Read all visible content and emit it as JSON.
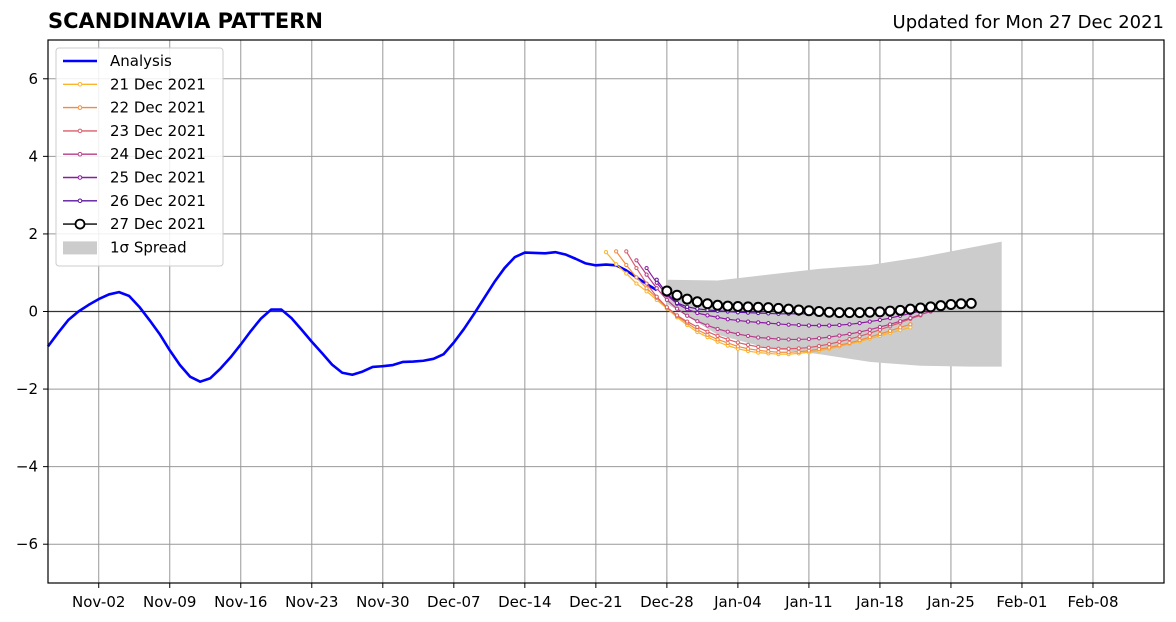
{
  "header": {
    "title": "SCANDINAVIA PATTERN",
    "subtitle": "Updated for Mon 27 Dec 2021"
  },
  "colors": {
    "analysis": "#0000ff",
    "d21": "#fcb52b",
    "d22": "#f28c3c",
    "d23": "#da5d6a",
    "d24": "#b63d8a",
    "d25": "#8a1aa0",
    "d26": "#5a14a0",
    "d27": "#000000",
    "spread": "#cccccc",
    "grid": "#999999"
  },
  "chart_data": {
    "type": "line",
    "title": "SCANDINAVIA PATTERN",
    "xlabel": "",
    "ylabel": "",
    "x_start": "2021-10-28",
    "x_end": "2022-02-15",
    "x_ticks": [
      "Nov-02",
      "Nov-09",
      "Nov-16",
      "Nov-23",
      "Nov-30",
      "Dec-07",
      "Dec-14",
      "Dec-21",
      "Dec-28",
      "Jan-04",
      "Jan-11",
      "Jan-18",
      "Jan-25",
      "Feb-01",
      "Feb-08"
    ],
    "ylim": [
      -7,
      7
    ],
    "y_ticks": [
      "−6",
      "−4",
      "−2",
      "0",
      "2",
      "4",
      "6"
    ],
    "grid": true,
    "legend_position": "top-left",
    "legend": [
      "Analysis",
      "21 Dec 2021",
      "22 Dec 2021",
      "23 Dec 2021",
      "24 Dec 2021",
      "25 Dec 2021",
      "26 Dec 2021",
      "27 Dec 2021",
      "1σ Spread"
    ],
    "analysis": {
      "name": "Analysis",
      "points": [
        [
          "2021-10-28",
          -0.9
        ],
        [
          "2021-10-29",
          -0.55
        ],
        [
          "2021-10-30",
          -0.22
        ],
        [
          "2021-10-31",
          0.0
        ],
        [
          "2021-11-01",
          0.17
        ],
        [
          "2021-11-02",
          0.32
        ],
        [
          "2021-11-03",
          0.44
        ],
        [
          "2021-11-04",
          0.5
        ],
        [
          "2021-11-05",
          0.4
        ],
        [
          "2021-11-06",
          0.12
        ],
        [
          "2021-11-07",
          -0.22
        ],
        [
          "2021-11-08",
          -0.58
        ],
        [
          "2021-11-09",
          -1.0
        ],
        [
          "2021-11-10",
          -1.38
        ],
        [
          "2021-11-11",
          -1.68
        ],
        [
          "2021-11-12",
          -1.81
        ],
        [
          "2021-11-13",
          -1.72
        ],
        [
          "2021-11-14",
          -1.47
        ],
        [
          "2021-11-15",
          -1.18
        ],
        [
          "2021-11-16",
          -0.85
        ],
        [
          "2021-11-17",
          -0.5
        ],
        [
          "2021-11-18",
          -0.18
        ],
        [
          "2021-11-19",
          0.05
        ],
        [
          "2021-11-20",
          0.05
        ],
        [
          "2021-11-21",
          -0.17
        ],
        [
          "2021-11-22",
          -0.47
        ],
        [
          "2021-11-23",
          -0.78
        ],
        [
          "2021-11-24",
          -1.07
        ],
        [
          "2021-11-25",
          -1.37
        ],
        [
          "2021-11-26",
          -1.58
        ],
        [
          "2021-11-27",
          -1.63
        ],
        [
          "2021-11-28",
          -1.55
        ],
        [
          "2021-11-29",
          -1.43
        ],
        [
          "2021-11-30",
          -1.41
        ],
        [
          "2021-12-01",
          -1.38
        ],
        [
          "2021-12-02",
          -1.3
        ],
        [
          "2021-12-03",
          -1.29
        ],
        [
          "2021-12-04",
          -1.27
        ],
        [
          "2021-12-05",
          -1.22
        ],
        [
          "2021-12-06",
          -1.1
        ],
        [
          "2021-12-07",
          -0.8
        ],
        [
          "2021-12-08",
          -0.45
        ],
        [
          "2021-12-09",
          -0.06
        ],
        [
          "2021-12-10",
          0.35
        ],
        [
          "2021-12-11",
          0.76
        ],
        [
          "2021-12-12",
          1.12
        ],
        [
          "2021-12-13",
          1.4
        ],
        [
          "2021-12-14",
          1.52
        ],
        [
          "2021-12-15",
          1.51
        ],
        [
          "2021-12-16",
          1.5
        ],
        [
          "2021-12-17",
          1.53
        ],
        [
          "2021-12-18",
          1.47
        ],
        [
          "2021-12-19",
          1.36
        ],
        [
          "2021-12-20",
          1.24
        ],
        [
          "2021-12-21",
          1.19
        ],
        [
          "2021-12-22",
          1.21
        ],
        [
          "2021-12-23",
          1.19
        ],
        [
          "2021-12-24",
          1.06
        ],
        [
          "2021-12-25",
          0.88
        ],
        [
          "2021-12-26",
          0.71
        ],
        [
          "2021-12-27",
          0.55
        ]
      ]
    },
    "forecasts": [
      {
        "name": "21 Dec 2021",
        "color_key": "d21",
        "start": "2021-12-22",
        "values": [
          1.53,
          1.22,
          0.98,
          0.72,
          0.52,
          0.3,
          0.08,
          -0.15,
          -0.35,
          -0.53,
          -0.66,
          -0.78,
          -0.88,
          -0.96,
          -1.02,
          -1.06,
          -1.08,
          -1.1,
          -1.1,
          -1.08,
          -1.05,
          -1.01,
          -0.96,
          -0.9,
          -0.84,
          -0.77,
          -0.7,
          -0.63,
          -0.55,
          -0.48,
          -0.41
        ]
      },
      {
        "name": "22 Dec 2021",
        "color_key": "d22",
        "start": "2021-12-23",
        "values": [
          1.55,
          1.2,
          0.88,
          0.6,
          0.35,
          0.1,
          -0.12,
          -0.3,
          -0.47,
          -0.6,
          -0.72,
          -0.81,
          -0.9,
          -0.96,
          -1.0,
          -1.03,
          -1.05,
          -1.05,
          -1.04,
          -1.01,
          -0.97,
          -0.93,
          -0.87,
          -0.81,
          -0.74,
          -0.66,
          -0.58,
          -0.5,
          -0.41,
          -0.33
        ]
      },
      {
        "name": "23 Dec 2021",
        "color_key": "d23",
        "start": "2021-12-24",
        "values": [
          1.55,
          1.12,
          0.72,
          0.38,
          0.11,
          -0.1,
          -0.26,
          -0.4,
          -0.52,
          -0.63,
          -0.72,
          -0.8,
          -0.86,
          -0.91,
          -0.94,
          -0.96,
          -0.96,
          -0.95,
          -0.93,
          -0.89,
          -0.84,
          -0.78,
          -0.71,
          -0.64,
          -0.56,
          -0.47,
          -0.38,
          -0.29,
          -0.19,
          -0.1
        ]
      },
      {
        "name": "24 Dec 2021",
        "color_key": "d24",
        "start": "2021-12-25",
        "values": [
          1.32,
          0.95,
          0.6,
          0.3,
          0.07,
          -0.11,
          -0.25,
          -0.36,
          -0.45,
          -0.52,
          -0.58,
          -0.63,
          -0.67,
          -0.69,
          -0.71,
          -0.72,
          -0.72,
          -0.71,
          -0.69,
          -0.66,
          -0.62,
          -0.58,
          -0.53,
          -0.47,
          -0.4,
          -0.33,
          -0.25,
          -0.17,
          -0.08,
          0.0
        ]
      },
      {
        "name": "25 Dec 2021",
        "color_key": "d25",
        "start": "2021-12-26",
        "values": [
          1.12,
          0.74,
          0.42,
          0.2,
          0.06,
          -0.04,
          -0.1,
          -0.15,
          -0.2,
          -0.23,
          -0.26,
          -0.28,
          -0.3,
          -0.32,
          -0.34,
          -0.35,
          -0.36,
          -0.36,
          -0.36,
          -0.35,
          -0.33,
          -0.3,
          -0.26,
          -0.22,
          -0.17,
          -0.11,
          -0.05,
          0.01,
          0.07
        ]
      },
      {
        "name": "26 Dec 2021",
        "color_key": "d26",
        "start": "2021-12-27",
        "values": [
          0.82,
          0.46,
          0.22,
          0.12,
          0.07,
          0.04,
          0.02,
          0.0,
          -0.02,
          -0.03,
          -0.04,
          -0.05,
          -0.06,
          -0.06,
          -0.06,
          -0.06,
          -0.06,
          -0.05,
          -0.04,
          -0.03,
          -0.02,
          0.0,
          0.02,
          0.05,
          0.08,
          0.11,
          0.14,
          0.17
        ]
      },
      {
        "name": "27 Dec 2021",
        "color_key": "d27",
        "start": "2021-12-28",
        "values": [
          0.53,
          0.42,
          0.32,
          0.25,
          0.2,
          0.16,
          0.14,
          0.13,
          0.12,
          0.11,
          0.1,
          0.08,
          0.06,
          0.04,
          0.02,
          0.0,
          -0.02,
          -0.03,
          -0.03,
          -0.03,
          -0.02,
          -0.01,
          0.01,
          0.03,
          0.06,
          0.09,
          0.12,
          0.15,
          0.18,
          0.2,
          0.21
        ]
      }
    ],
    "spread": {
      "name": "1σ Spread",
      "x": [
        "2021-12-28",
        "2022-01-02",
        "2022-01-07",
        "2022-01-12",
        "2022-01-17",
        "2022-01-22",
        "2022-01-27",
        "2022-01-30"
      ],
      "upper": [
        0.82,
        0.8,
        0.95,
        1.1,
        1.2,
        1.4,
        1.65,
        1.8
      ],
      "lower": [
        0.2,
        -0.6,
        -0.95,
        -1.1,
        -1.3,
        -1.4,
        -1.42,
        -1.42
      ]
    }
  }
}
